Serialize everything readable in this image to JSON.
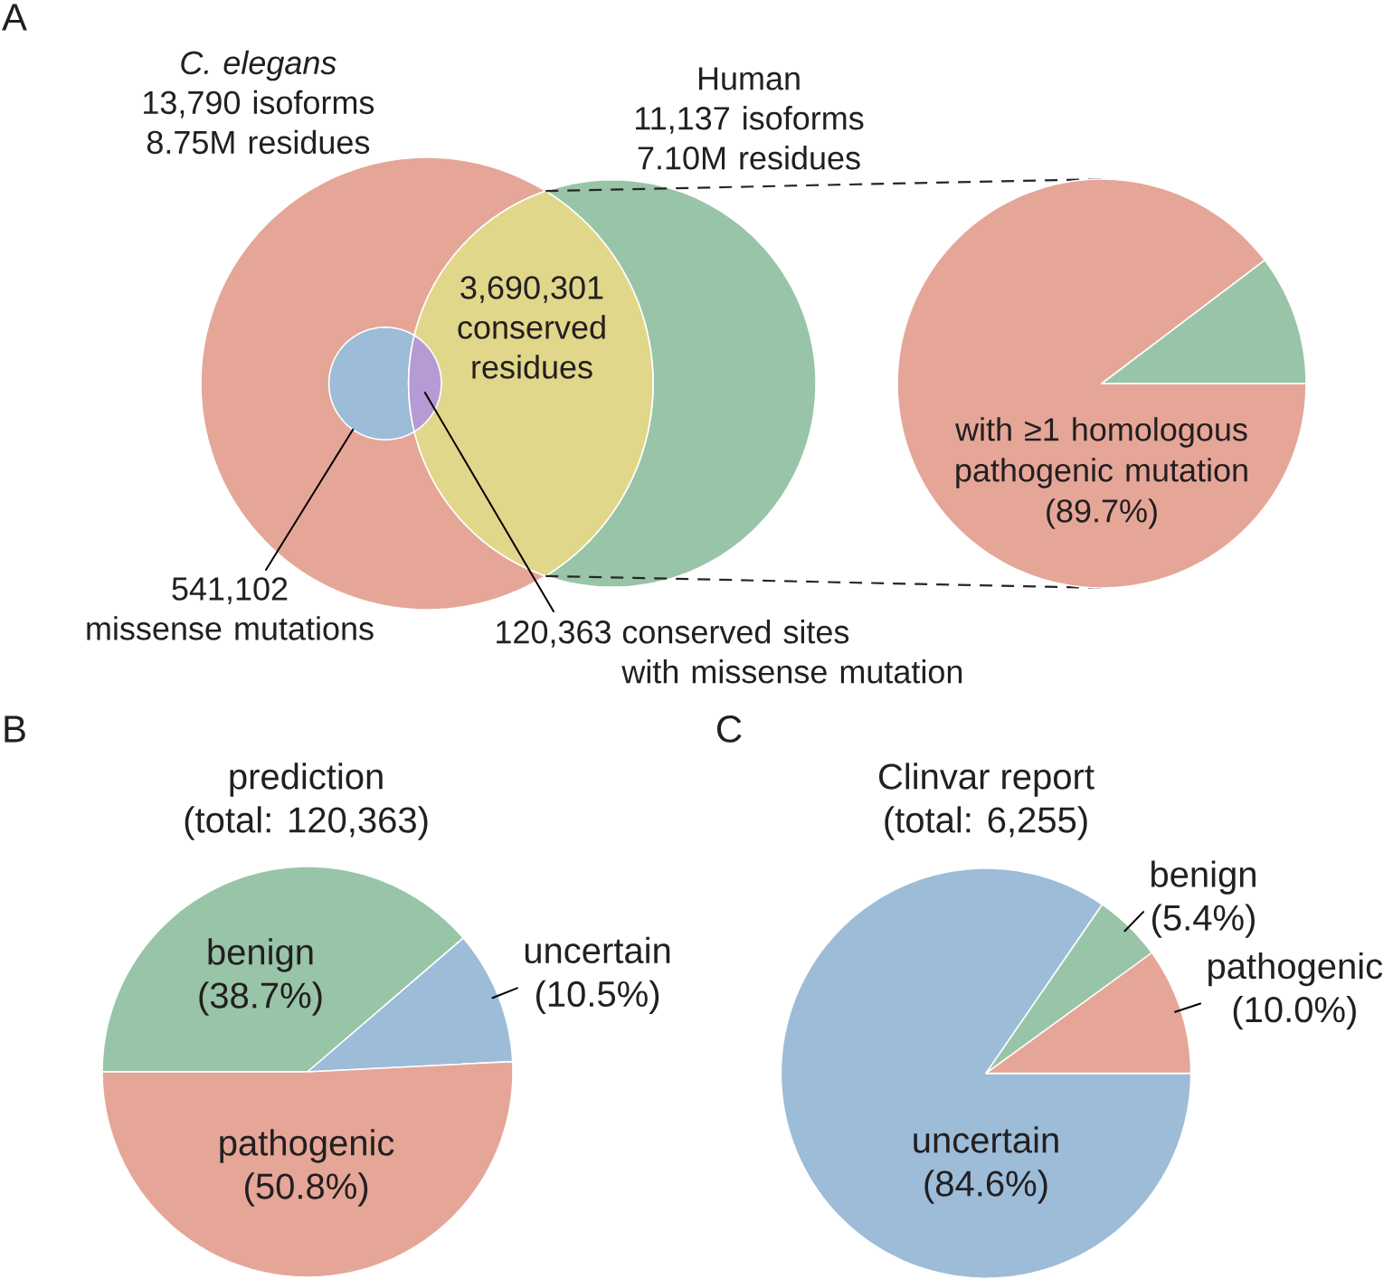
{
  "chart_data": [
    {
      "type": "other",
      "annotations": [
        "A"
      ],
      "categories": [
        "*C. elegans*",
        "Human",
        "conserved residues",
        "missense mutations",
        "conserved sites with missense mutation"
      ],
      "values": [
        8750000,
        7100000,
        3690301,
        541102,
        120363
      ],
      "value_labels": [
        "13,790 isoforms 8.75M residues",
        "11,137 isoforms 7.10M residues",
        "3,690,301",
        "541,102",
        "120,363"
      ],
      "colors": [
        "#E5A698",
        "#98C4A8",
        "#E0D78A",
        "#9CBCD8",
        "#B59BD3"
      ]
    },
    {
      "type": "pie",
      "categories": [
        "with ≥1 homologous pathogenic mutation",
        null
      ],
      "values": [
        89.7,
        10.3
      ],
      "value_labels": [
        "(89.7%)",
        null
      ],
      "colors": [
        "#E5A698",
        "#98C4A8"
      ]
    },
    {
      "type": "pie",
      "title": "prediction",
      "subtitle": "(total: 120,363)",
      "annotations": [
        "B"
      ],
      "categories": [
        "benign",
        "uncertain",
        "pathogenic"
      ],
      "values": [
        38.7,
        10.5,
        50.8
      ],
      "value_labels": [
        "(38.7%)",
        "(10.5%)",
        "(50.8%)"
      ],
      "colors": [
        "#98C4A8",
        "#9CBCD8",
        "#E5A698"
      ]
    },
    {
      "type": "pie",
      "title": "Clinvar report",
      "subtitle": "(total: 6,255)",
      "annotations": [
        "C"
      ],
      "categories": [
        "uncertain",
        "benign",
        "pathogenic"
      ],
      "values": [
        84.6,
        5.4,
        10.0
      ],
      "value_labels": [
        "(84.6%)",
        "(5.4%)",
        "(10.0%)"
      ],
      "colors": [
        "#9CBCD8",
        "#98C4A8",
        "#E5A698"
      ]
    }
  ]
}
